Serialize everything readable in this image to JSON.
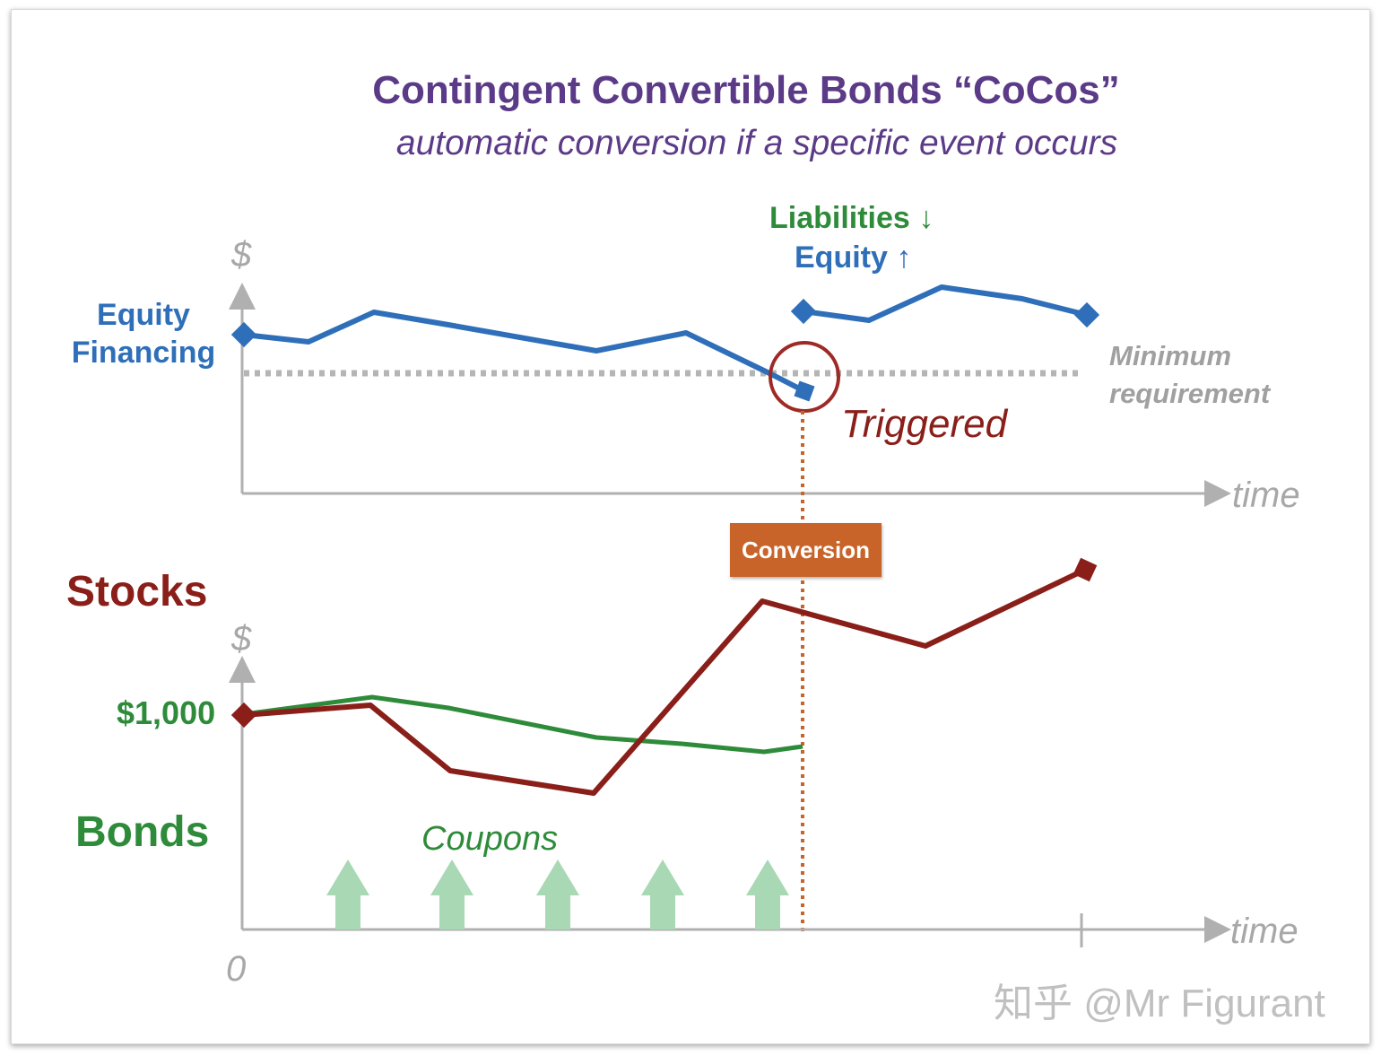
{
  "header": {
    "title": "Contingent Convertible Bonds “CoCos”",
    "subtitle": "automatic conversion if a specific event occurs"
  },
  "top_panel": {
    "y_axis_label": "$",
    "x_axis_label": "time",
    "equity_label_line1": "Equity",
    "equity_label_line2": "Financing",
    "liabilities_label": "Liabilities ↓",
    "equity_up_label": "Equity ↑",
    "minimum_label_line1": "Minimum",
    "minimum_label_line2": "requirement",
    "triggered_label": "Triggered"
  },
  "conversion_label": "Conversion",
  "bottom_panel": {
    "y_axis_label": "$",
    "x_axis_label": "time",
    "origin_label": "0",
    "stocks_label": "Stocks",
    "bonds_label": "Bonds",
    "par_value_label": "$1,000",
    "coupons_label": "Coupons",
    "coupon_count": 5
  },
  "watermark": "知乎 @Mr Figurant",
  "colors": {
    "title": "#5b3a87",
    "equity_line": "#2f6fb9",
    "bonds_line": "#2e8b3a",
    "stocks_line": "#8a1f1a",
    "conversion_box": "#c8642a",
    "coupon_arrow": "#a9d8b4",
    "axis": "#b0b0b0"
  }
}
